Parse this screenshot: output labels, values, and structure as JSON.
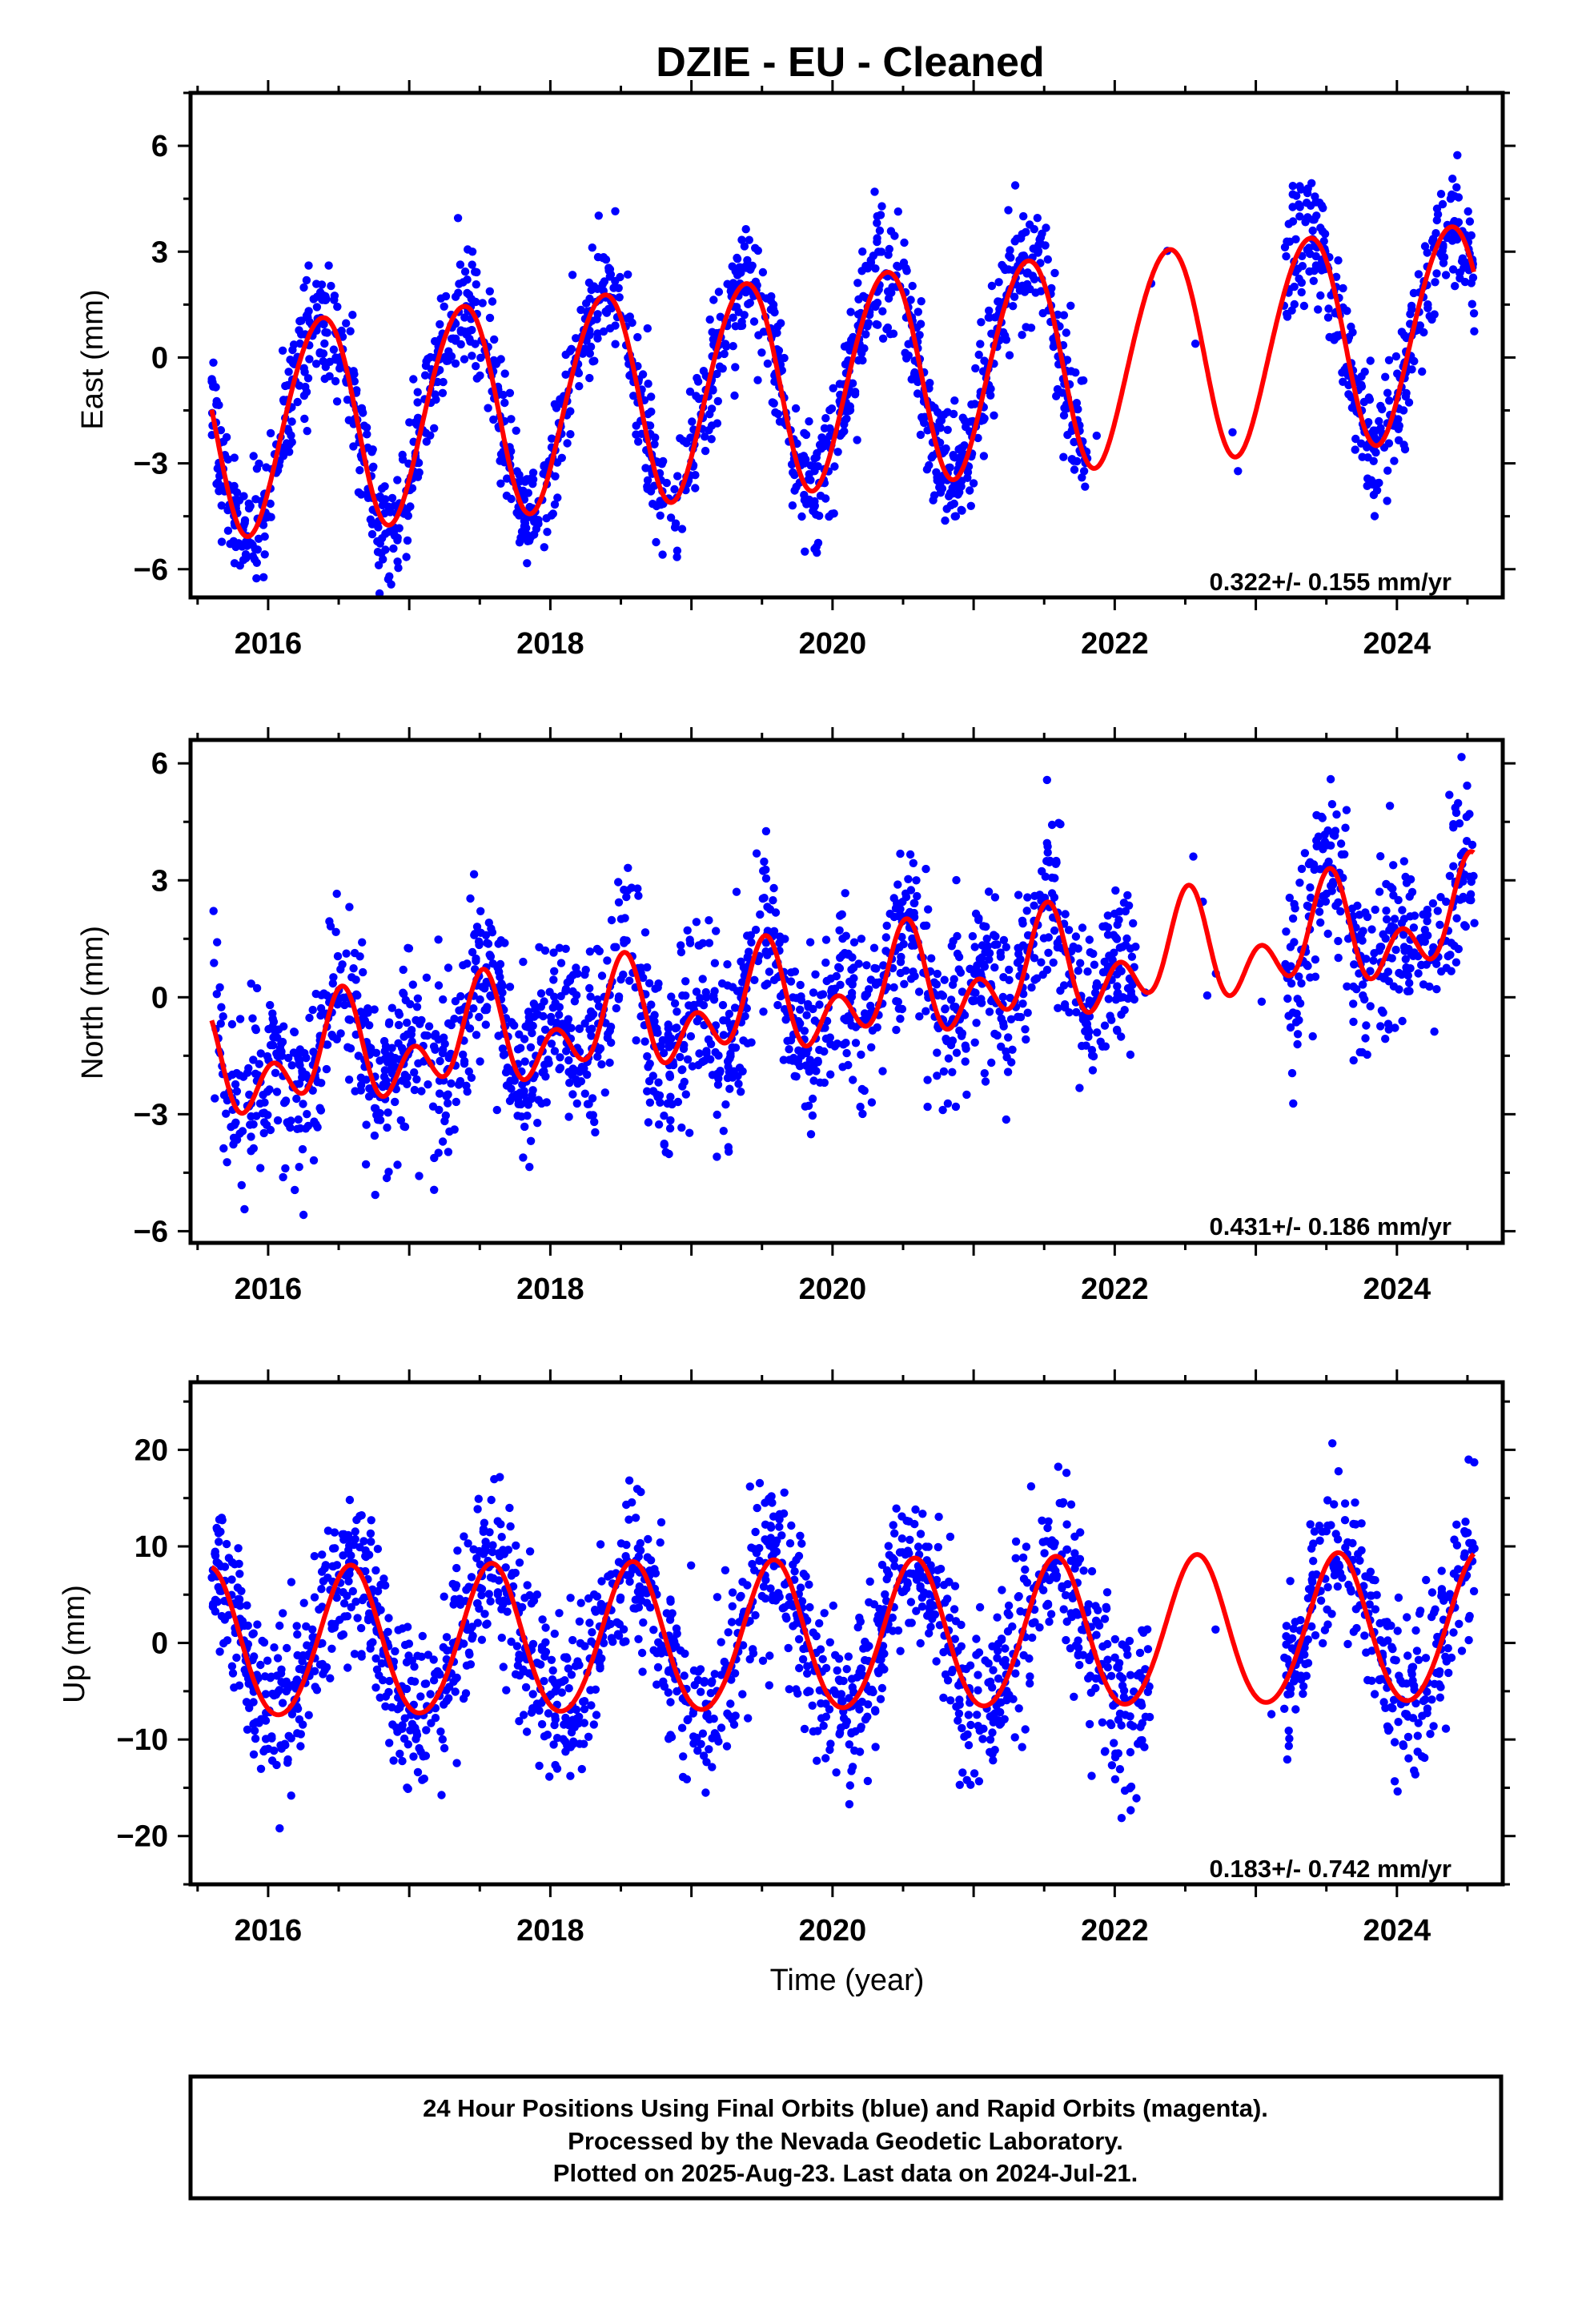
{
  "title": "DZIE  - EU - Cleaned",
  "xlabel": "Time (year)",
  "footer": {
    "lines": [
      "24 Hour Positions Using Final Orbits (blue) and Rapid Orbits (magenta).",
      "Processed by the Nevada Geodetic Laboratory.",
      "Plotted on 2025-Aug-23. Last data on 2024-Jul-21."
    ]
  },
  "colors": {
    "points": "#0000ff",
    "fit": "#ff0000",
    "frame": "#000000"
  },
  "chart_data": [
    {
      "type": "scatter",
      "ylabel": "East (mm)",
      "rate_label": "0.322+/- 0.155 mm/yr",
      "xlim": [
        2015.45,
        2024.75
      ],
      "ylim": [
        -6.8,
        7.5
      ],
      "xticks": [
        2016,
        2018,
        2020,
        2022,
        2024
      ],
      "yticks": [
        -6,
        -3,
        0,
        3,
        6
      ],
      "fit": {
        "offset": -0.6,
        "rate": 0.322,
        "t0": 2020.0,
        "annual_amp": 3.0,
        "annual_peak": 0.37,
        "semiannual_amp": 0.2,
        "semiannual_peak": 0.05
      },
      "noise_sd": 0.9,
      "series": [
        {
          "name": "Final Orbits",
          "color": "#0000ff",
          "x_range": [
            2015.6,
            2024.55
          ],
          "gaps": [
            [
              2021.8,
              2023.2
            ]
          ],
          "n": 2200
        },
        {
          "name": "Model fit",
          "color": "#ff0000",
          "x_range": [
            2015.6,
            2024.55
          ]
        }
      ]
    },
    {
      "type": "scatter",
      "ylabel": "North (mm)",
      "rate_label": "0.431+/- 0.186 mm/yr",
      "xlim": [
        2015.45,
        2024.75
      ],
      "ylim": [
        -6.3,
        6.6
      ],
      "xticks": [
        2016,
        2018,
        2020,
        2022,
        2024
      ],
      "yticks": [
        -6,
        -3,
        0,
        3,
        6
      ],
      "fit": {
        "offset": 0.0,
        "rate": 0.431,
        "t0": 2020.0,
        "annual_amp": 0.9,
        "annual_peak": 0.5,
        "semiannual_amp": 0.9,
        "semiannual_peak": 0.03
      },
      "noise_sd": 1.1,
      "series": [
        {
          "name": "Final Orbits",
          "color": "#0000ff",
          "x_range": [
            2015.6,
            2024.55
          ],
          "gaps": [
            [
              2022.15,
              2023.2
            ]
          ],
          "n": 2200
        },
        {
          "name": "Model fit",
          "color": "#ff0000",
          "x_range": [
            2015.6,
            2024.55
          ]
        }
      ]
    },
    {
      "type": "scatter",
      "ylabel": "Up (mm)",
      "rate_label": "0.183+/- 0.742 mm/yr",
      "xlim": [
        2015.45,
        2024.75
      ],
      "ylim": [
        -25,
        27
      ],
      "xticks": [
        2016,
        2018,
        2020,
        2022,
        2024
      ],
      "yticks": [
        -20,
        -10,
        0,
        10,
        20
      ],
      "fit": {
        "offset": 0.5,
        "rate": 0.183,
        "t0": 2020.0,
        "annual_amp": 7.7,
        "annual_peak": 0.58,
        "semiannual_amp": 0.5,
        "semiannual_peak": 0.1
      },
      "noise_sd": 4.2,
      "series": [
        {
          "name": "Final Orbits",
          "color": "#0000ff",
          "x_range": [
            2015.6,
            2024.55
          ],
          "gaps": [
            [
              2022.25,
              2023.2
            ]
          ],
          "n": 2200
        },
        {
          "name": "Model fit",
          "color": "#ff0000",
          "x_range": [
            2015.6,
            2024.55
          ]
        }
      ]
    }
  ]
}
